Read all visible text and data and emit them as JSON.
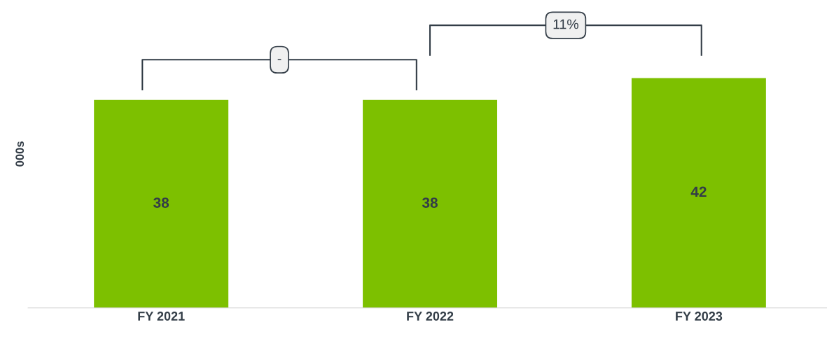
{
  "chart_data": {
    "type": "bar",
    "ylabel": "000s",
    "categories": [
      "FY 2021",
      "FY 2022",
      "FY 2023"
    ],
    "values": [
      38,
      38,
      42
    ],
    "color": "#7dc000",
    "data_labels": true,
    "tick_labels": "x",
    "annotations": [
      "-",
      "11%"
    ]
  }
}
